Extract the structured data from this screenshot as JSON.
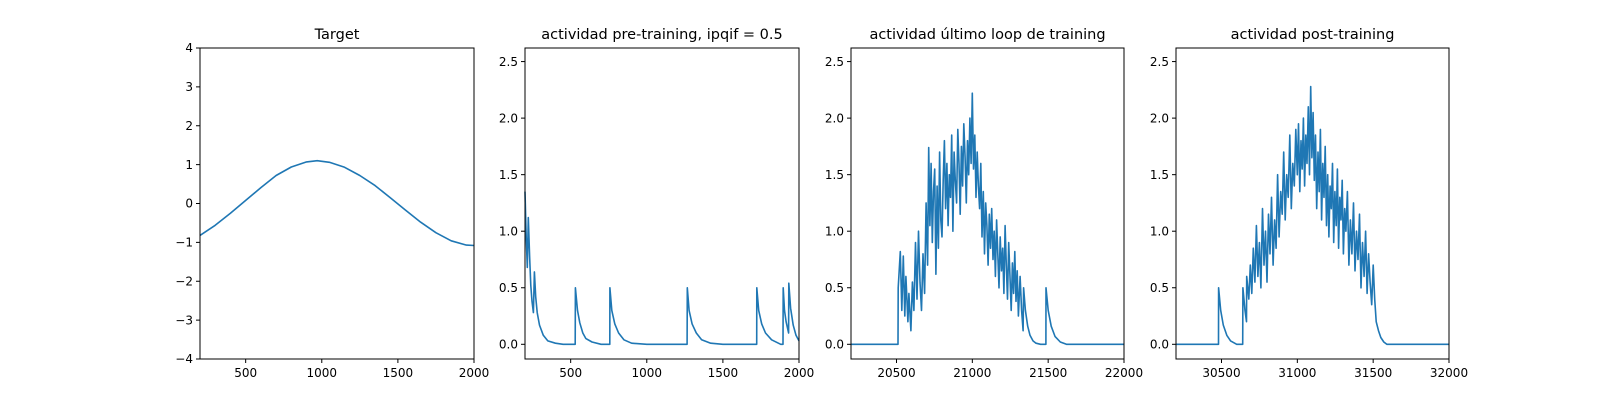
{
  "chart_data": [
    {
      "type": "line",
      "title": "Target",
      "xlabel": "",
      "ylabel": "",
      "xlim": [
        200,
        2000
      ],
      "ylim": [
        -4,
        4
      ],
      "xticks": [
        500,
        1000,
        1500,
        2000
      ],
      "yticks": [
        -4,
        -3,
        -2,
        -1,
        0,
        1,
        2,
        3,
        4
      ],
      "grid": false,
      "series": [
        {
          "color": "#1f77b4",
          "x": [
            200,
            300,
            400,
            500,
            600,
            700,
            800,
            900,
            970,
            1050,
            1150,
            1250,
            1350,
            1450,
            1550,
            1650,
            1750,
            1850,
            1950,
            2000
          ],
          "y": [
            -0.82,
            -0.56,
            -0.25,
            0.08,
            0.41,
            0.72,
            0.94,
            1.07,
            1.1,
            1.06,
            0.93,
            0.72,
            0.46,
            0.15,
            -0.17,
            -0.48,
            -0.75,
            -0.96,
            -1.07,
            -1.08
          ]
        }
      ]
    },
    {
      "type": "line",
      "title": "actividad pre-training, ipqif = 0.5",
      "xlabel": "",
      "ylabel": "",
      "xlim": [
        200,
        2000
      ],
      "ylim": [
        -0.13,
        2.62
      ],
      "xticks": [
        500,
        1000,
        1500,
        2000
      ],
      "yticks": [
        0.0,
        0.5,
        1.0,
        1.5,
        2.0,
        2.5
      ],
      "grid": false,
      "series": [
        {
          "color": "#1f77b4",
          "x": [
            200,
            208,
            215,
            222,
            230,
            238,
            246,
            255,
            262,
            270,
            280,
            295,
            320,
            350,
            400,
            450,
            530,
            531,
            545,
            560,
            580,
            600,
            640,
            700,
            757,
            758,
            770,
            790,
            815,
            850,
            900,
            1000,
            1100,
            1200,
            1265,
            1266,
            1278,
            1298,
            1325,
            1360,
            1420,
            1500,
            1600,
            1700,
            1722,
            1723,
            1735,
            1755,
            1780,
            1820,
            1880,
            1895,
            1896,
            1905,
            1915,
            1925,
            1932,
            1933,
            1945,
            1962,
            1980,
            2000
          ],
          "y": [
            1.35,
            0.95,
            0.68,
            1.12,
            0.78,
            0.52,
            0.38,
            0.28,
            0.64,
            0.42,
            0.28,
            0.17,
            0.08,
            0.03,
            0.01,
            0.0,
            0.0,
            0.5,
            0.3,
            0.19,
            0.1,
            0.05,
            0.02,
            0.0,
            0.0,
            0.5,
            0.3,
            0.18,
            0.1,
            0.04,
            0.01,
            0.0,
            0.0,
            0.0,
            0.0,
            0.5,
            0.3,
            0.18,
            0.1,
            0.04,
            0.01,
            0.0,
            0.0,
            0.0,
            0.0,
            0.5,
            0.3,
            0.18,
            0.1,
            0.04,
            0.0,
            0.0,
            0.5,
            0.3,
            0.2,
            0.14,
            0.1,
            0.54,
            0.32,
            0.17,
            0.08,
            0.03
          ]
        }
      ]
    },
    {
      "type": "line",
      "title": "actividad último loop de training",
      "xlabel": "",
      "ylabel": "",
      "xlim": [
        20200,
        22000
      ],
      "ylim": [
        -0.13,
        2.62
      ],
      "xticks": [
        20500,
        21000,
        21500,
        22000
      ],
      "yticks": [
        0.0,
        0.5,
        1.0,
        1.5,
        2.0,
        2.5
      ],
      "grid": false,
      "series": [
        {
          "color": "#1f77b4",
          "x": [
            20200,
            20300,
            20400,
            20510,
            20511,
            20525,
            20535,
            20545,
            20555,
            20562,
            20575,
            20582,
            20595,
            20605,
            20615,
            20625,
            20635,
            20645,
            20655,
            20665,
            20675,
            20685,
            20695,
            20705,
            20712,
            20720,
            20728,
            20736,
            20744,
            20752,
            20760,
            20768,
            20776,
            20784,
            20792,
            20800,
            20808,
            20816,
            20824,
            20832,
            20840,
            20848,
            20856,
            20864,
            20872,
            20880,
            20888,
            20896,
            20904,
            20912,
            20920,
            20928,
            20936,
            20944,
            20952,
            20960,
            20968,
            20976,
            20984,
            20992,
            21000,
            21008,
            21016,
            21024,
            21032,
            21040,
            21048,
            21056,
            21064,
            21072,
            21080,
            21088,
            21096,
            21104,
            21112,
            21120,
            21128,
            21136,
            21144,
            21152,
            21160,
            21168,
            21176,
            21184,
            21192,
            21200,
            21208,
            21216,
            21224,
            21232,
            21240,
            21248,
            21256,
            21264,
            21272,
            21280,
            21288,
            21296,
            21304,
            21315,
            21325,
            21335,
            21338,
            21350,
            21365,
            21380,
            21400,
            21420,
            21450,
            21485,
            21486,
            21500,
            21520,
            21545,
            21580,
            21620,
            21700,
            21800,
            21900,
            22000
          ],
          "y": [
            0.0,
            0.0,
            0.0,
            0.0,
            0.5,
            0.82,
            0.3,
            0.78,
            0.25,
            0.6,
            0.2,
            0.45,
            0.12,
            0.55,
            0.3,
            0.9,
            0.4,
            1.0,
            0.55,
            0.3,
            0.8,
            0.45,
            1.25,
            0.7,
            1.74,
            1.05,
            1.6,
            0.9,
            1.35,
            1.55,
            0.62,
            1.4,
            0.85,
            1.7,
            1.1,
            0.95,
            1.45,
            1.8,
            1.2,
            1.6,
            1.05,
            1.5,
            1.3,
            1.85,
            1.0,
            1.7,
            1.45,
            1.25,
            1.9,
            1.6,
            1.15,
            1.75,
            1.4,
            1.95,
            1.65,
            1.25,
            1.8,
            1.5,
            2.0,
            1.6,
            2.22,
            1.55,
            1.85,
            1.3,
            1.7,
            1.4,
            1.2,
            1.6,
            0.95,
            1.35,
            0.8,
            1.25,
            1.05,
            0.7,
            1.15,
            0.85,
            1.2,
            0.75,
            1.0,
            0.6,
            1.1,
            0.8,
            0.5,
            0.95,
            0.65,
            0.85,
            0.45,
            1.05,
            0.7,
            0.4,
            0.9,
            0.62,
            0.3,
            0.72,
            0.45,
            0.82,
            0.38,
            0.65,
            0.25,
            0.6,
            0.3,
            0.12,
            0.5,
            0.3,
            0.16,
            0.08,
            0.03,
            0.01,
            0.0,
            0.0,
            0.5,
            0.3,
            0.16,
            0.07,
            0.02,
            0.0,
            0.0,
            0.0,
            0.0,
            0.0
          ]
        }
      ]
    },
    {
      "type": "line",
      "title": "actividad post-training",
      "xlabel": "",
      "ylabel": "",
      "xlim": [
        30200,
        32000
      ],
      "ylim": [
        -0.13,
        2.62
      ],
      "xticks": [
        30500,
        31000,
        31500,
        32000
      ],
      "yticks": [
        0.0,
        0.5,
        1.0,
        1.5,
        2.0,
        2.5
      ],
      "grid": false,
      "series": [
        {
          "color": "#1f77b4",
          "x": [
            30200,
            30300,
            30400,
            30480,
            30481,
            30495,
            30512,
            30535,
            30560,
            30600,
            30640,
            30641,
            30655,
            30665,
            30666,
            30680,
            30690,
            30700,
            30710,
            30720,
            30730,
            30740,
            30750,
            30760,
            30770,
            30780,
            30790,
            30800,
            30810,
            30820,
            30830,
            30840,
            30850,
            30860,
            30870,
            30880,
            30890,
            30900,
            30910,
            30920,
            30930,
            30940,
            30950,
            30960,
            30970,
            30980,
            30990,
            31000,
            31008,
            31016,
            31024,
            31032,
            31040,
            31048,
            31056,
            31064,
            31072,
            31080,
            31088,
            31096,
            31104,
            31112,
            31120,
            31128,
            31136,
            31144,
            31152,
            31160,
            31168,
            31176,
            31184,
            31192,
            31200,
            31208,
            31216,
            31224,
            31232,
            31240,
            31248,
            31256,
            31264,
            31272,
            31280,
            31288,
            31296,
            31304,
            31312,
            31320,
            31330,
            31340,
            31350,
            31360,
            31370,
            31380,
            31390,
            31400,
            31410,
            31420,
            31430,
            31440,
            31450,
            31460,
            31470,
            31480,
            31490,
            31500,
            31510,
            31520,
            31535,
            31550,
            31570,
            31590,
            31620,
            31660,
            31700,
            31800,
            31900,
            32000
          ],
          "y": [
            0.0,
            0.0,
            0.0,
            0.0,
            0.5,
            0.3,
            0.17,
            0.08,
            0.03,
            0.0,
            0.0,
            0.5,
            0.3,
            0.2,
            0.6,
            0.4,
            0.7,
            0.45,
            0.85,
            0.55,
            1.05,
            0.6,
            0.9,
            0.5,
            1.2,
            0.7,
            1.0,
            0.55,
            1.15,
            0.8,
            1.3,
            0.7,
            1.1,
            0.85,
            1.5,
            0.95,
            1.35,
            1.15,
            1.7,
            1.1,
            1.5,
            1.3,
            1.85,
            1.2,
            1.6,
            1.4,
            1.9,
            1.5,
            1.95,
            1.35,
            1.8,
            1.55,
            2.0,
            1.4,
            1.85,
            1.6,
            2.1,
            1.5,
            2.28,
            1.65,
            2.05,
            1.45,
            1.85,
            1.2,
            1.7,
            1.35,
            1.9,
            1.1,
            1.6,
            1.3,
            1.75,
            1.05,
            1.5,
            0.95,
            1.4,
            1.2,
            1.6,
            0.9,
            1.35,
            1.05,
            1.55,
            0.85,
            1.3,
            1.1,
            1.45,
            0.8,
            1.2,
            1.0,
            1.35,
            0.7,
            1.1,
            0.8,
            1.25,
            0.65,
            1.0,
            0.75,
            1.15,
            0.5,
            0.9,
            0.6,
            1.0,
            0.45,
            0.8,
            0.55,
            0.35,
            0.7,
            0.4,
            0.2,
            0.12,
            0.06,
            0.02,
            0.0,
            0.0,
            0.0,
            0.0,
            0.0,
            0.0,
            0.0
          ]
        }
      ]
    }
  ]
}
